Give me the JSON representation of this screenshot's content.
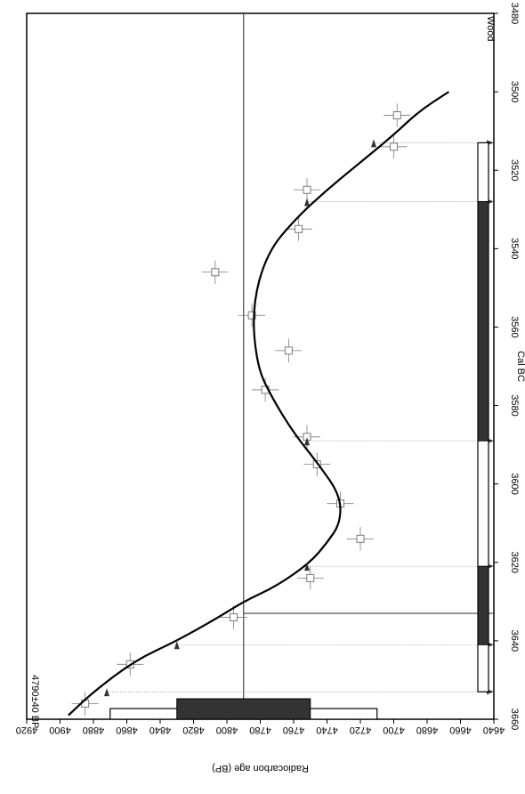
{
  "chart_data": {
    "type": "line",
    "orientation": "rotated-90-clockwise",
    "title": "",
    "xlabel": "Radiocarbon age (BP)",
    "ylabel": "Cal BC",
    "xlim": [
      4640,
      4920
    ],
    "ylim": [
      3480,
      3660
    ],
    "x_ticks": [
      4920,
      4900,
      4880,
      4860,
      4840,
      4820,
      4800,
      4780,
      4760,
      4740,
      4720,
      4700,
      4680,
      4660,
      4640
    ],
    "y_ticks": [
      3480,
      3500,
      3520,
      3540,
      3560,
      3580,
      3600,
      3620,
      3640,
      3660
    ],
    "annotations": {
      "date_label": "4790±40 BP",
      "material_label": "Wood"
    },
    "sample_date": 4790,
    "calibration_curve": {
      "x": [
        4895,
        4880,
        4855,
        4830,
        4805,
        4790,
        4770,
        4750,
        4740,
        4732,
        4732,
        4745,
        4760,
        4773,
        4782,
        4785,
        4776,
        4758,
        4740,
        4720,
        4700,
        4685,
        4667
      ],
      "y": [
        3659,
        3653,
        3645,
        3640,
        3634,
        3630,
        3626,
        3620,
        3615,
        3610,
        3603,
        3595,
        3587,
        3578,
        3570,
        3555,
        3541,
        3532,
        3525,
        3518,
        3511,
        3505,
        3500
      ]
    },
    "measurements": [
      {
        "x": 4885,
        "y": 3656,
        "xerr": 8,
        "yerr": 3
      },
      {
        "x": 4858,
        "y": 3646,
        "xerr": 8,
        "yerr": 3
      },
      {
        "x": 4796,
        "y": 3634,
        "xerr": 8,
        "yerr": 3
      },
      {
        "x": 4750,
        "y": 3624,
        "xerr": 8,
        "yerr": 3
      },
      {
        "x": 4720,
        "y": 3614,
        "xerr": 8,
        "yerr": 3
      },
      {
        "x": 4732,
        "y": 3605,
        "xerr": 8,
        "yerr": 3
      },
      {
        "x": 4746,
        "y": 3595,
        "xerr": 8,
        "yerr": 3
      },
      {
        "x": 4752,
        "y": 3588,
        "xerr": 8,
        "yerr": 3
      },
      {
        "x": 4777,
        "y": 3576,
        "xerr": 8,
        "yerr": 3
      },
      {
        "x": 4763,
        "y": 3566,
        "xerr": 8,
        "yerr": 3
      },
      {
        "x": 4785,
        "y": 3557,
        "xerr": 8,
        "yerr": 3
      },
      {
        "x": 4807,
        "y": 3546,
        "xerr": 8,
        "yerr": 3
      },
      {
        "x": 4757,
        "y": 3535,
        "xerr": 8,
        "yerr": 3
      },
      {
        "x": 4752,
        "y": 3525,
        "xerr": 8,
        "yerr": 3
      },
      {
        "x": 4700,
        "y": 3514,
        "xerr": 8,
        "yerr": 3
      },
      {
        "x": 4698,
        "y": 3506,
        "xerr": 8,
        "yerr": 3
      }
    ],
    "intercept_markers": [
      {
        "x": 4872,
        "y": 3653
      },
      {
        "x": 4830,
        "y": 3641
      },
      {
        "x": 4752,
        "y": 3621
      },
      {
        "x": 4752,
        "y": 3589
      },
      {
        "x": 4752,
        "y": 3528
      },
      {
        "x": 4712,
        "y": 3513
      }
    ],
    "radiocarbon_ranges": [
      {
        "kind": "1-sigma",
        "from": 4750,
        "to": 4830
      },
      {
        "kind": "2-sigma",
        "from": 4710,
        "to": 4870
      }
    ],
    "calendar_ranges": [
      {
        "kind": "1-sigma",
        "from": 3528,
        "to": 3589
      },
      {
        "kind": "1-sigma",
        "from": 3621,
        "to": 3641
      },
      {
        "kind": "2-sigma",
        "from": 3513,
        "to": 3653
      }
    ],
    "colors": {
      "curve": "#000000",
      "measurement": "#7a7a7a",
      "one_sigma_fill": "#333333",
      "two_sigma_fill": "#ffffff",
      "marker": "#333333",
      "guide": "#9a9a9a"
    }
  }
}
